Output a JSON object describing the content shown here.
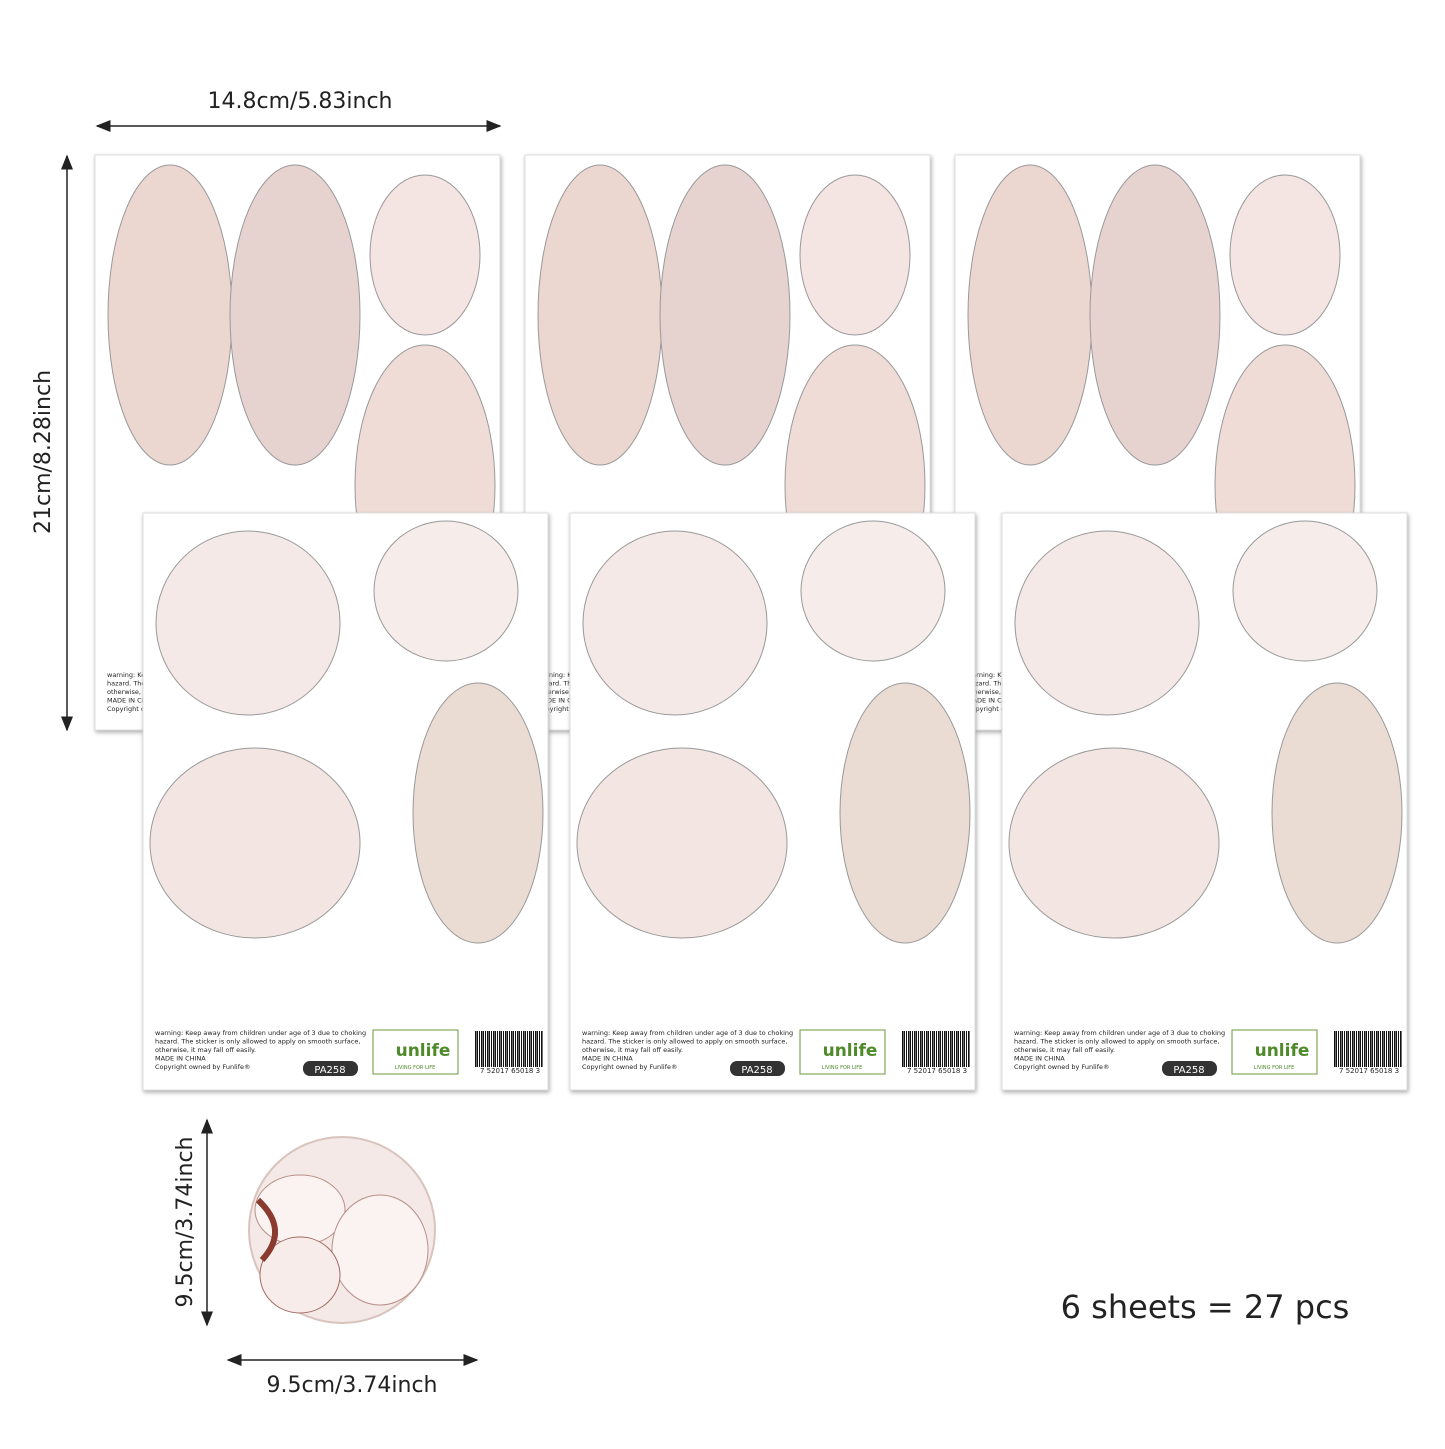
{
  "dimensions": {
    "sheet_width": "14.8cm/5.83inch",
    "sheet_height": "21cm/8.28inch",
    "piece_height": "9.5cm/3.74inch",
    "piece_width": "9.5cm/3.74inch"
  },
  "sheet": {
    "footer_lines": [
      "warning: Keep away from children under age of 3 due to choking",
      "hazard. The sticker is only allowed to apply on smooth surface,",
      "otherwise, it may fall off easily.",
      "MADE IN CHINA",
      "Copyright owned by Funlife®"
    ],
    "code": "PA258",
    "brand": "unlife",
    "tagline": "LIVING FOR LIFE",
    "barcode": "7 52017 65018 3"
  },
  "summary": "6 sheets = 27 pcs"
}
